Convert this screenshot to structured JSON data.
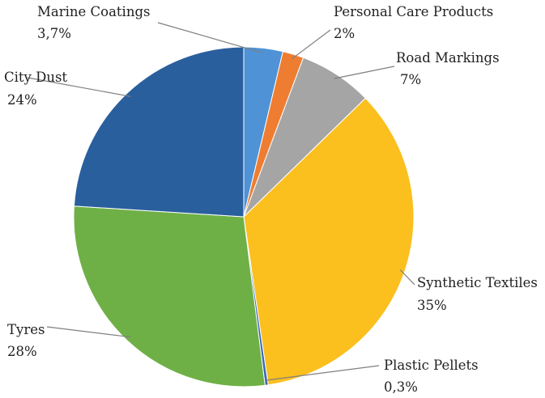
{
  "chart_data": {
    "type": "pie",
    "title": "",
    "legend": "none",
    "slices": [
      {
        "name": "Marine Coatings",
        "value": 3.7,
        "label": "3,7%",
        "color": "#4f92d6"
      },
      {
        "name": "Personal Care Products",
        "value": 2,
        "label": "2%",
        "color": "#ee7d31"
      },
      {
        "name": "Road Markings",
        "value": 7,
        "label": "7%",
        "color": "#a5a5a5"
      },
      {
        "name": "Synthetic Textiles",
        "value": 35,
        "label": "35%",
        "color": "#fbbf1e"
      },
      {
        "name": "Plastic Pellets",
        "value": 0.3,
        "label": "0,3%",
        "color": "#3a66b8"
      },
      {
        "name": "Tyres",
        "value": 28,
        "label": "28%",
        "color": "#6fb046"
      },
      {
        "name": "City Dust",
        "value": 24,
        "label": "24%",
        "color": "#2a5f9e"
      }
    ]
  }
}
